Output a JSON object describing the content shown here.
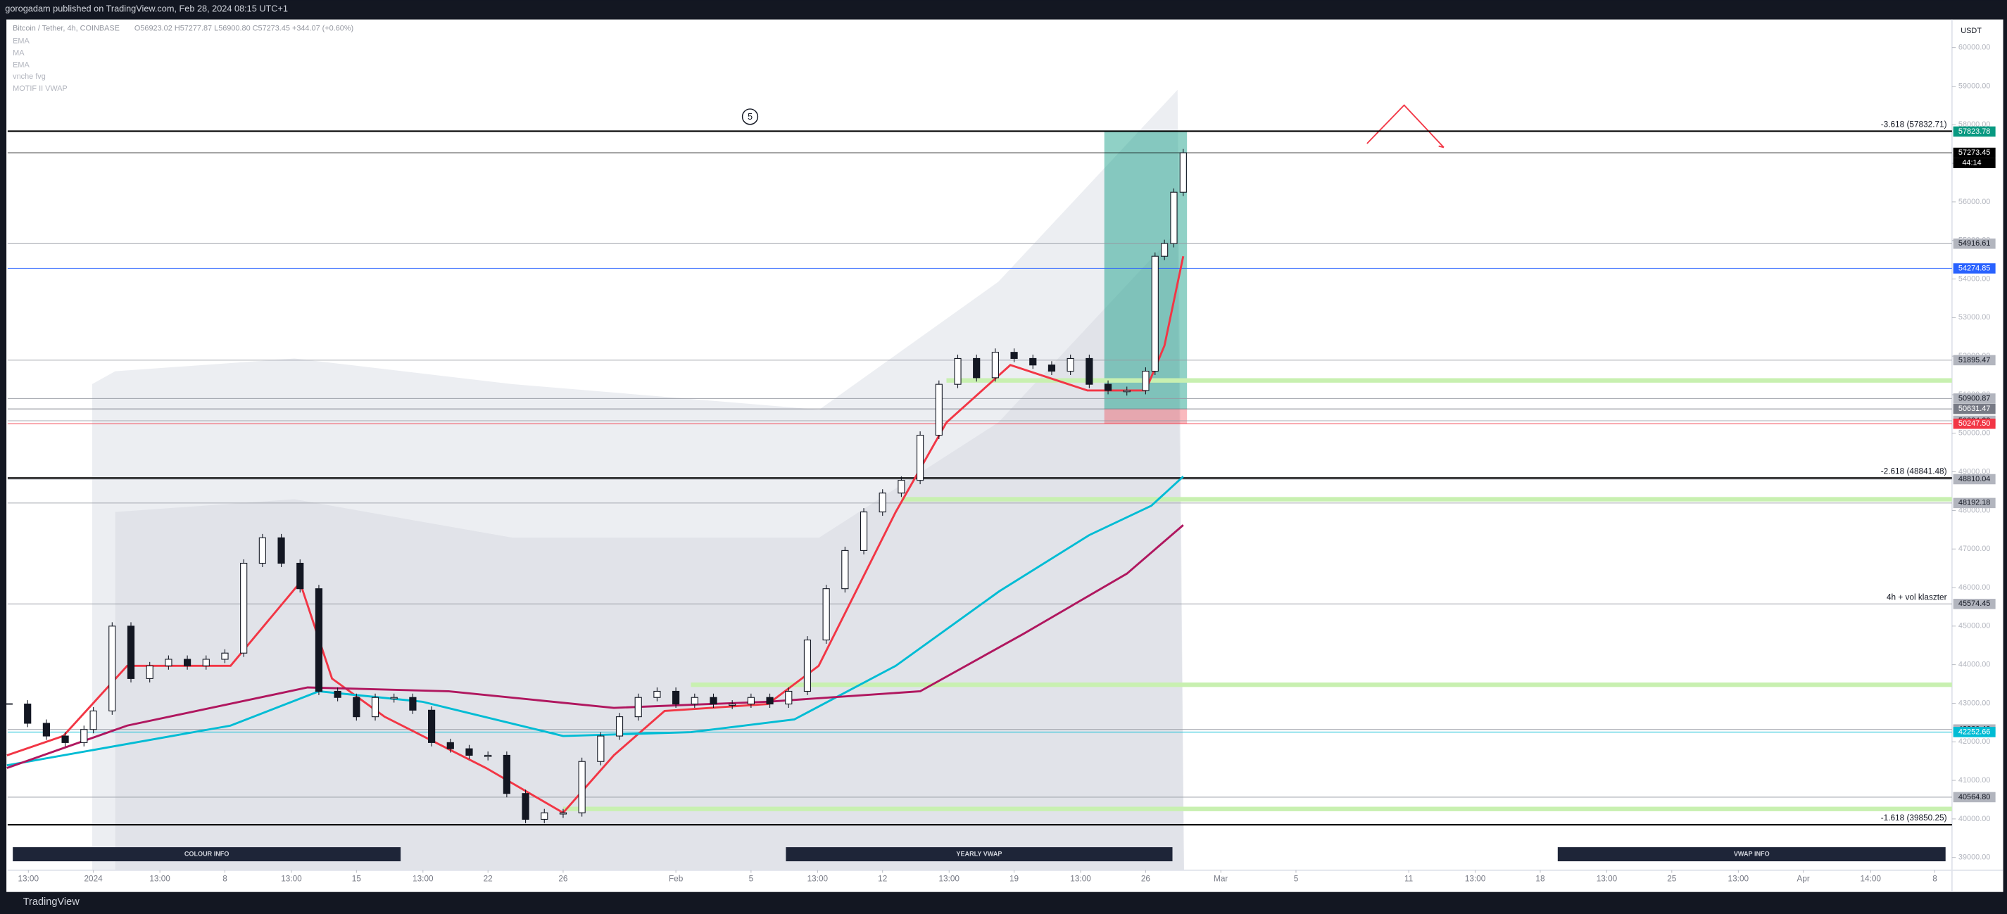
{
  "header": {
    "publisher": "gorogadam published on TradingView.com, Feb 28, 2024 08:15 UTC+1"
  },
  "footer": {
    "brand": "TradingView"
  },
  "chart_data": {
    "type": "candlestick",
    "symbol": "Bitcoin / Tether, 4h, COINBASE",
    "ohlc": "O56923.02 H57277.87 L56900.80 C57273.45 +344.07 (+0.60%)",
    "indicators": [
      "EMA",
      "MA",
      "EMA",
      "vnche fvg",
      "MOTIF II VWAP"
    ],
    "currency": "USDT",
    "countdown": "44:14",
    "wave_label": "5",
    "color": "#131722",
    "x": [
      -4.5,
      -3.5,
      -2.5,
      -1.5,
      -0.5,
      0,
      1,
      2,
      3,
      4,
      5,
      6,
      7,
      8,
      9,
      10,
      11,
      12,
      13,
      14,
      15,
      16,
      17,
      18,
      19,
      20,
      21,
      22,
      23,
      24,
      25,
      26,
      27,
      28,
      29,
      30,
      31,
      32,
      33,
      34,
      35,
      36,
      37,
      38,
      39,
      40,
      41,
      42,
      43,
      44,
      45,
      46,
      47,
      48,
      49,
      50,
      51,
      52,
      53,
      54,
      55,
      56,
      56.5,
      57,
      57.5,
      58
    ],
    "values": [
      42980,
      42480,
      42150,
      41980,
      42320,
      42800,
      45000,
      43640,
      43970,
      44140,
      43970,
      44140,
      44300,
      46630,
      47290,
      46630,
      45970,
      43310,
      43150,
      42650,
      43150,
      43150,
      42820,
      41980,
      41820,
      41650,
      41650,
      40660,
      39990,
      40160,
      40160,
      41490,
      42150,
      42650,
      43150,
      43310,
      42980,
      43150,
      42980,
      42980,
      43150,
      42980,
      43310,
      44640,
      45970,
      46960,
      47960,
      48450,
      48780,
      49950,
      51270,
      51940,
      51440,
      52100,
      51940,
      51770,
      51610,
      51940,
      51270,
      51110,
      51110,
      51610,
      54590,
      54920,
      56250,
      57273
    ],
    "xlim": [
      -4.56,
      98.91
    ],
    "ylim": [
      38670,
      60730
    ],
    "xticks": [
      {
        "value": -3.46,
        "label": "13:00"
      },
      {
        "value": 0,
        "label": "2024"
      },
      {
        "value": 3.54,
        "label": "13:00"
      },
      {
        "value": 7,
        "label": "8"
      },
      {
        "value": 10.54,
        "label": "13:00"
      },
      {
        "value": 14,
        "label": "15"
      },
      {
        "value": 17.54,
        "label": "13:00"
      },
      {
        "value": 21,
        "label": "22"
      },
      {
        "value": 25,
        "label": "26"
      },
      {
        "value": 31,
        "label": "Feb"
      },
      {
        "value": 35,
        "label": "5"
      },
      {
        "value": 38.54,
        "label": "13:00"
      },
      {
        "value": 42,
        "label": "12"
      },
      {
        "value": 45.54,
        "label": "13:00"
      },
      {
        "value": 49,
        "label": "19"
      },
      {
        "value": 52.54,
        "label": "13:00"
      },
      {
        "value": 56,
        "label": "26"
      },
      {
        "value": 60,
        "label": "Mar"
      },
      {
        "value": 64,
        "label": "5"
      },
      {
        "value": 70,
        "label": "11"
      },
      {
        "value": 73.54,
        "label": "13:00"
      },
      {
        "value": 77,
        "label": "18"
      },
      {
        "value": 80.54,
        "label": "13:00"
      },
      {
        "value": 84,
        "label": "25"
      },
      {
        "value": 87.54,
        "label": "13:00"
      },
      {
        "value": 91,
        "label": "Apr"
      },
      {
        "value": 94.58,
        "label": "14:00"
      },
      {
        "value": 98,
        "label": "8"
      }
    ],
    "yticks": [
      {
        "value": 39000,
        "label": "39000.00"
      },
      {
        "value": 40000,
        "label": "40000.00"
      },
      {
        "value": 41000,
        "label": "41000.00"
      },
      {
        "value": 42000,
        "label": "42000.00"
      },
      {
        "value": 43000,
        "label": "43000.00"
      },
      {
        "value": 44000,
        "label": "44000.00"
      },
      {
        "value": 45000,
        "label": "45000.00"
      },
      {
        "value": 46000,
        "label": "46000.00"
      },
      {
        "value": 47000,
        "label": "47000.00"
      },
      {
        "value": 48000,
        "label": "48000.00"
      },
      {
        "value": 49000,
        "label": "49000.00"
      },
      {
        "value": 50000,
        "label": "50000.00"
      },
      {
        "value": 51000,
        "label": "51000.00"
      },
      {
        "value": 52000,
        "label": "52000.00"
      },
      {
        "value": 53000,
        "label": "53000.00"
      },
      {
        "value": 54000,
        "label": "54000.00"
      },
      {
        "value": 55000,
        "label": "55000.00"
      },
      {
        "value": 56000,
        "label": "56000.00"
      },
      {
        "value": 57000,
        "label": "57000.00"
      },
      {
        "value": 58000,
        "label": "58000.00"
      },
      {
        "value": 59000,
        "label": "59000.00"
      },
      {
        "value": 60000,
        "label": "60000.00"
      }
    ],
    "moving_averages": [
      {
        "color": "#f23645",
        "x": [
          -4.6,
          -1.6,
          1.8,
          7.3,
          11.0,
          12.7,
          15.5,
          20.9,
          25.0,
          27.7,
          30.4,
          35.9,
          38.6,
          42.7,
          45.4,
          48.8,
          52.9,
          56.0,
          57.0,
          58.0
        ],
        "values": [
          41650,
          42150,
          43970,
          43970,
          46130,
          43640,
          42650,
          41320,
          40160,
          41650,
          42800,
          42980,
          43970,
          47960,
          50280,
          51770,
          51110,
          51110,
          52270,
          54590
        ]
      },
      {
        "color": "#00bcd4",
        "x": [
          -4.6,
          7.3,
          12.0,
          17.5,
          25.0,
          31.8,
          37.3,
          42.7,
          48.2,
          53.0,
          56.3,
          58.0
        ],
        "values": [
          41390,
          42420,
          43310,
          43040,
          42150,
          42250,
          42580,
          43970,
          45900,
          47360,
          48120,
          48880
        ]
      },
      {
        "color": "#b0175f",
        "x": [
          -4.6,
          1.8,
          11.4,
          18.9,
          27.7,
          35.9,
          44.0,
          49.5,
          55.0,
          58.0
        ],
        "values": [
          41320,
          42420,
          43410,
          43310,
          42880,
          43040,
          43310,
          44800,
          46360,
          47620
        ]
      }
    ],
    "levels": [
      {
        "value": 57823.78,
        "color": "#089981",
        "text_color": "#ffffff"
      },
      {
        "value": 57273.45,
        "color": "#000000",
        "text_color": "#ffffff"
      },
      {
        "value": 54916.61,
        "color": "#b2b5be",
        "text_color": "#131722"
      },
      {
        "value": 54274.85,
        "color": "#2962ff",
        "text_color": "#ffffff"
      },
      {
        "value": 51895.47,
        "color": "#b2b5be",
        "text_color": "#131722"
      },
      {
        "value": 50900.87,
        "color": "#b2b5be",
        "text_color": "#131722"
      },
      {
        "value": 50631.47,
        "color": "#787b86",
        "text_color": "#ffffff"
      },
      {
        "value": 50324.22,
        "color": "#b2b5be",
        "text_color": "#131722"
      },
      {
        "value": 50247.5,
        "label": "50247.50",
        "color": "#f23645",
        "text_color": "#ffffff"
      },
      {
        "value": 48810.04,
        "color": "#b2b5be",
        "text_color": "#131722"
      },
      {
        "value": 48192.18,
        "color": "#b2b5be",
        "text_color": "#131722"
      },
      {
        "value": 45574.45,
        "color": "#b2b5be",
        "text_color": "#131722"
      },
      {
        "value": 42320.4,
        "label": "42320.40",
        "color": "#b2b5be",
        "text_color": "#131722"
      },
      {
        "value": 42252.66,
        "color": "#00bcd4",
        "text_color": "#ffffff"
      },
      {
        "value": 40564.8,
        "label": "40564.80",
        "color": "#b2b5be",
        "text_color": "#131722"
      }
    ],
    "fib": [
      {
        "value": 57832.71,
        "label": "-3.618 (57832.71)"
      },
      {
        "value": 48841.48,
        "label": "-2.618 (48841.48)"
      },
      {
        "value": 39850.25,
        "label": "-1.618 (39850.25)"
      }
    ],
    "zones": [
      {
        "value": 51370,
        "from": 45.4
      },
      {
        "value": 48290,
        "from": 43
      },
      {
        "value": 43480,
        "from": 31.8
      },
      {
        "value": 40260,
        "from": 25
      }
    ],
    "zone_color": "#c8f0b0",
    "annotations": [
      {
        "text": "4h + vol klaszter",
        "value": 45574.45
      }
    ],
    "position": {
      "x": [
        53.8,
        58.2
      ],
      "target": 57823.78,
      "entry": 50631.47,
      "stop": 50247.5
    },
    "buttons": [
      "COLOUR INFO",
      "YEARLY VWAP",
      "VWAP INFO"
    ]
  }
}
